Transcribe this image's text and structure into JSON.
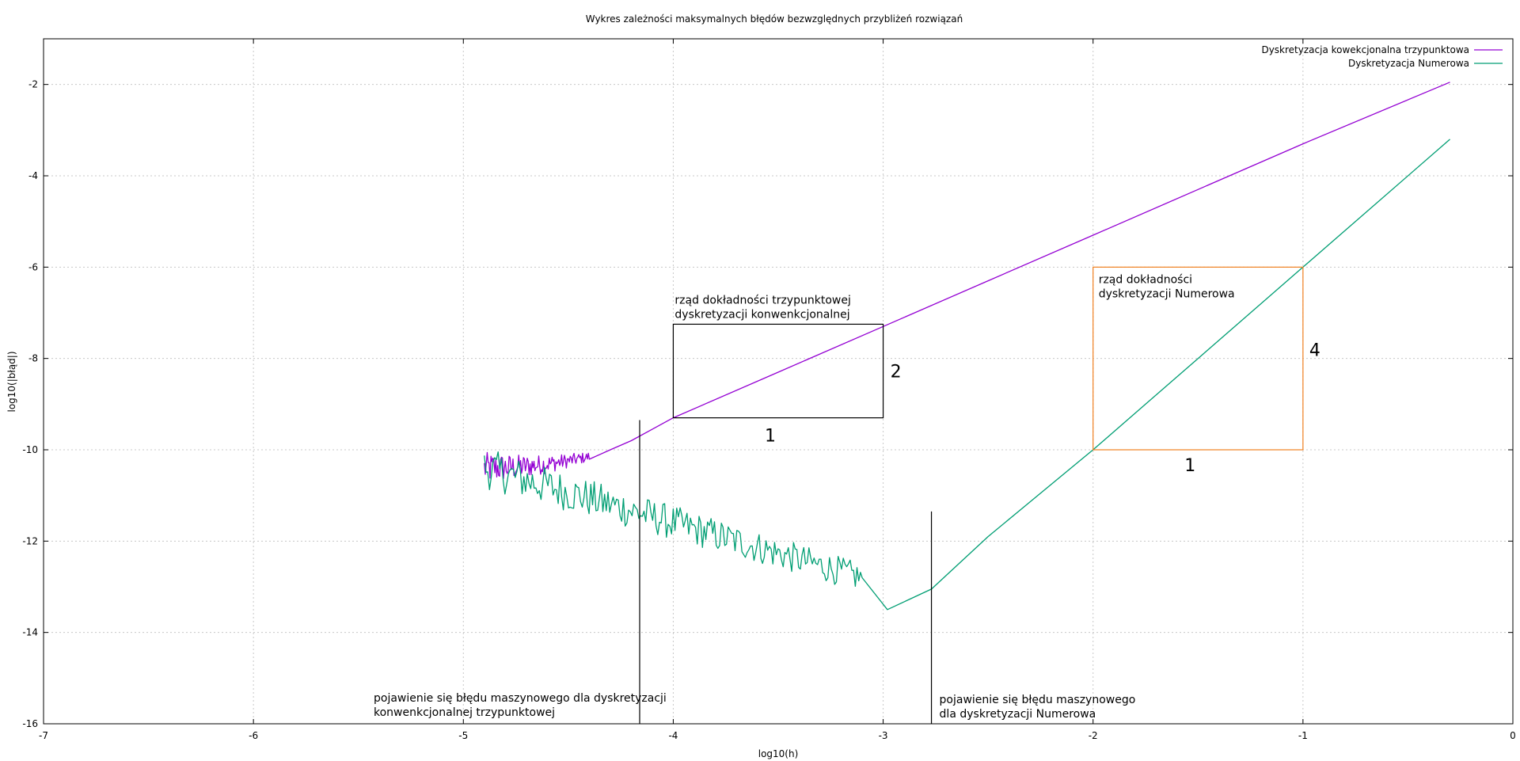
{
  "chart_data": {
    "type": "line",
    "title": "Wykres zależności maksymalnych błędów bezwzględnych przybliżeń rozwiązań",
    "xlabel": "log10(h)",
    "ylabel": "log10(|błąd|)",
    "xlim": [
      -7,
      0
    ],
    "ylim": [
      -16,
      -1
    ],
    "x_ticks": [
      "-7",
      "-6",
      "-5",
      "-4",
      "-3",
      "-2",
      "-1",
      "0"
    ],
    "y_ticks": [
      "-2",
      "-4",
      "-6",
      "-8",
      "-10",
      "-12",
      "-14",
      "-16"
    ],
    "grid": true,
    "legend_position": "top-right",
    "series": [
      {
        "name": "Dyskretyzacja kowekcjonalna trzypunktowa",
        "color": "#9400d3",
        "noisy": {
          "x_start": -4.9,
          "x_end": -4.4,
          "y_center": -10.4,
          "amplitude": 0.35
        },
        "x": [
          -4.9,
          -4.8,
          -4.7,
          -4.6,
          -4.5,
          -4.4,
          -4.3,
          -4.2,
          -4.1,
          -4.0,
          -3.5,
          -3.0,
          -2.5,
          -2.0,
          -1.5,
          -1.0,
          -0.3
        ],
        "y": [
          -10.4,
          -10.45,
          -10.5,
          -10.4,
          -10.35,
          -10.15,
          -10.0,
          -9.8,
          -9.55,
          -9.3,
          -8.3,
          -7.3,
          -6.3,
          -5.3,
          -4.3,
          -3.3,
          -1.95
        ]
      },
      {
        "name": "Dyskretyzacja Numerowa",
        "color": "#009e73",
        "noisy": {
          "x_start": -4.9,
          "x_end": -3.1,
          "y_center_start": -10.4,
          "y_center_end": -12.8,
          "amplitude": 0.45
        },
        "x": [
          -4.9,
          -4.7,
          -4.5,
          -4.3,
          -4.1,
          -3.9,
          -3.7,
          -3.5,
          -3.3,
          -3.25,
          -3.17,
          -3.1,
          -2.98,
          -2.77,
          -2.5,
          -2.0,
          -1.5,
          -1.0,
          -0.3
        ],
        "y": [
          -10.4,
          -10.8,
          -11.0,
          -11.3,
          -11.6,
          -12.0,
          -12.2,
          -12.3,
          -12.6,
          -13.1,
          -12.5,
          -13.1,
          -13.5,
          -13.05,
          -11.9,
          -10.0,
          -8.0,
          -6.0,
          -3.2
        ]
      }
    ],
    "annotations": {
      "box_trzypunktowa": {
        "rect": {
          "x0": -4,
          "x1": -3,
          "y0": -9.3,
          "y1": -7.25
        },
        "label_line1": "rząd dokładności trzypunktowej",
        "label_line2": "dyskretyzacji konwenkcjonalnej",
        "run_label": "1",
        "rise_label": "2"
      },
      "box_numerowa": {
        "rect": {
          "x0": -2,
          "x1": -1,
          "y0": -10,
          "y1": -6
        },
        "color": "#f08020",
        "label_line1": "rząd dokładności",
        "label_line2": "dyskretyzacji Numerowa",
        "run_label": "1",
        "rise_label": "4"
      },
      "vline_trzypunktowa": {
        "x": -4.16,
        "y_top": -9.35,
        "label_line1": "pojawienie się błędu maszynowego dla dyskretyzacji",
        "label_line2": "konwenkcjonalnej trzypunktowej"
      },
      "vline_numerowa": {
        "x": -2.77,
        "y_top": -11.35,
        "label_line1": "pojawienie się błędu maszynowego",
        "label_line2": "dla dyskretyzacji Numerowa"
      }
    }
  }
}
